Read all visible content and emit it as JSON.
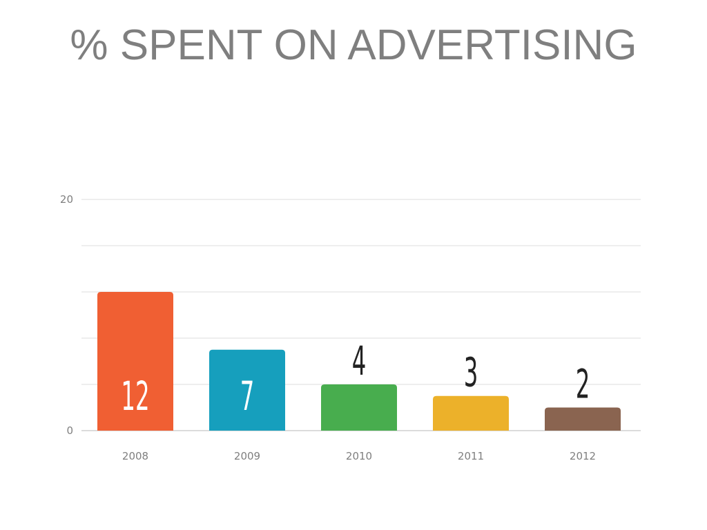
{
  "chart_data": {
    "type": "bar",
    "title": "% SPENT ON ADVERTISING",
    "categories": [
      "2008",
      "2009",
      "2010",
      "2011",
      "2012"
    ],
    "values": [
      12,
      7,
      4,
      3,
      2
    ],
    "data_labels": [
      "12",
      "7",
      "4",
      "3",
      "2"
    ],
    "ylim": [
      0,
      20
    ],
    "yticks_labeled": [
      "0",
      "20"
    ],
    "gridline_step": 4,
    "grid": true,
    "xlabel": "",
    "ylabel": "",
    "colors": [
      "#f05f33",
      "#169fbd",
      "#48ad4e",
      "#ecb12a",
      "#8a6450"
    ],
    "label_colors": [
      "#ffffff",
      "#ffffff",
      "#222222",
      "#222222",
      "#222222"
    ]
  }
}
